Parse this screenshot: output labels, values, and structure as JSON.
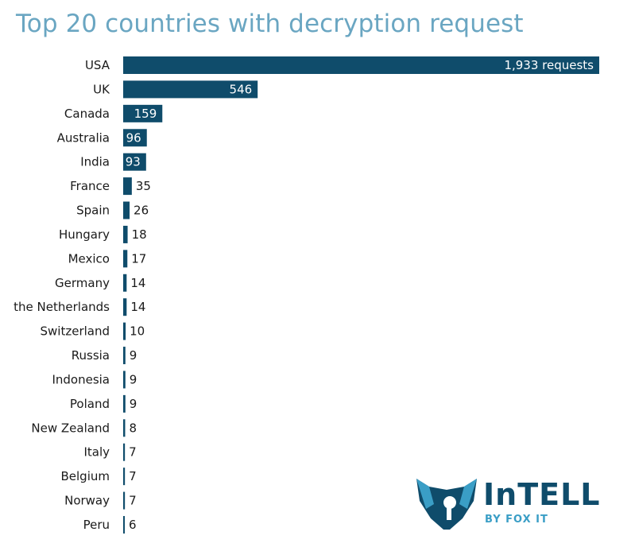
{
  "colors": {
    "bar": "#0f4c6b",
    "title": "#6aa6c2",
    "logo_dark": "#0f4c6b",
    "logo_light": "#3a9ec6"
  },
  "logo": {
    "icon": "fox-head-icon",
    "word": "InTELL",
    "sub": "BY FOX IT"
  },
  "chart_data": {
    "type": "bar",
    "orientation": "horizontal",
    "title": "Top 20 countries with decryption request",
    "categories": [
      "USA",
      "UK",
      "Canada",
      "Australia",
      "India",
      "France",
      "Spain",
      "Hungary",
      "Mexico",
      "Germany",
      "the Netherlands",
      "Switzerland",
      "Russia",
      "Indonesia",
      "Poland",
      "New Zealand",
      "Italy",
      "Belgium",
      "Norway",
      "Peru"
    ],
    "values": [
      1933,
      546,
      159,
      96,
      93,
      35,
      26,
      18,
      17,
      14,
      14,
      10,
      9,
      9,
      9,
      8,
      7,
      7,
      7,
      6
    ],
    "value_labels": [
      "1,933 requests",
      "546",
      "159",
      "96",
      "93",
      "35",
      "26",
      "18",
      "17",
      "14",
      "14",
      "10",
      "9",
      "9",
      "9",
      "8",
      "7",
      "7",
      "7",
      "6"
    ],
    "xlim": [
      0,
      1933
    ],
    "grid": false,
    "legend": "none"
  }
}
